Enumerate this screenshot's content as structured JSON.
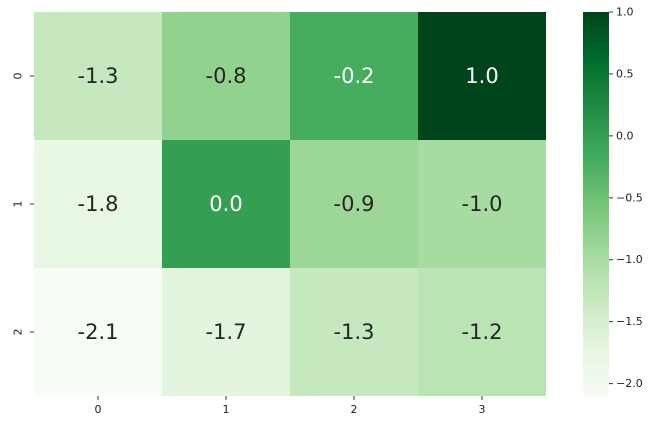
{
  "chart_data": {
    "type": "heatmap",
    "title": "",
    "xlabel": "",
    "ylabel": "",
    "x_tick_labels": [
      "0",
      "1",
      "2",
      "3"
    ],
    "y_tick_labels": [
      "0",
      "1",
      "2"
    ],
    "values": [
      [
        -1.3,
        -0.8,
        -0.2,
        1.0
      ],
      [
        -1.8,
        0.0,
        -0.9,
        -1.0
      ],
      [
        -2.1,
        -1.7,
        -1.3,
        -1.2
      ]
    ],
    "cell_labels": [
      [
        "-1.3",
        "-0.8",
        "-0.2",
        "1.0"
      ],
      [
        "-1.8",
        "0.0",
        "-0.9",
        "-1.0"
      ],
      [
        "-2.1",
        "-1.7",
        "-1.3",
        "-1.2"
      ]
    ],
    "colormap": "Greens",
    "vmin": -2.1,
    "vmax": 1.0,
    "colorbar": {
      "ticks": [
        1.0,
        0.5,
        0.0,
        -0.5,
        -1.0,
        -1.5,
        -2.0
      ],
      "tick_labels": [
        "1.0",
        "0.5",
        "0.0",
        "−0.5",
        "−1.0",
        "−1.5",
        "−2.0"
      ]
    }
  }
}
